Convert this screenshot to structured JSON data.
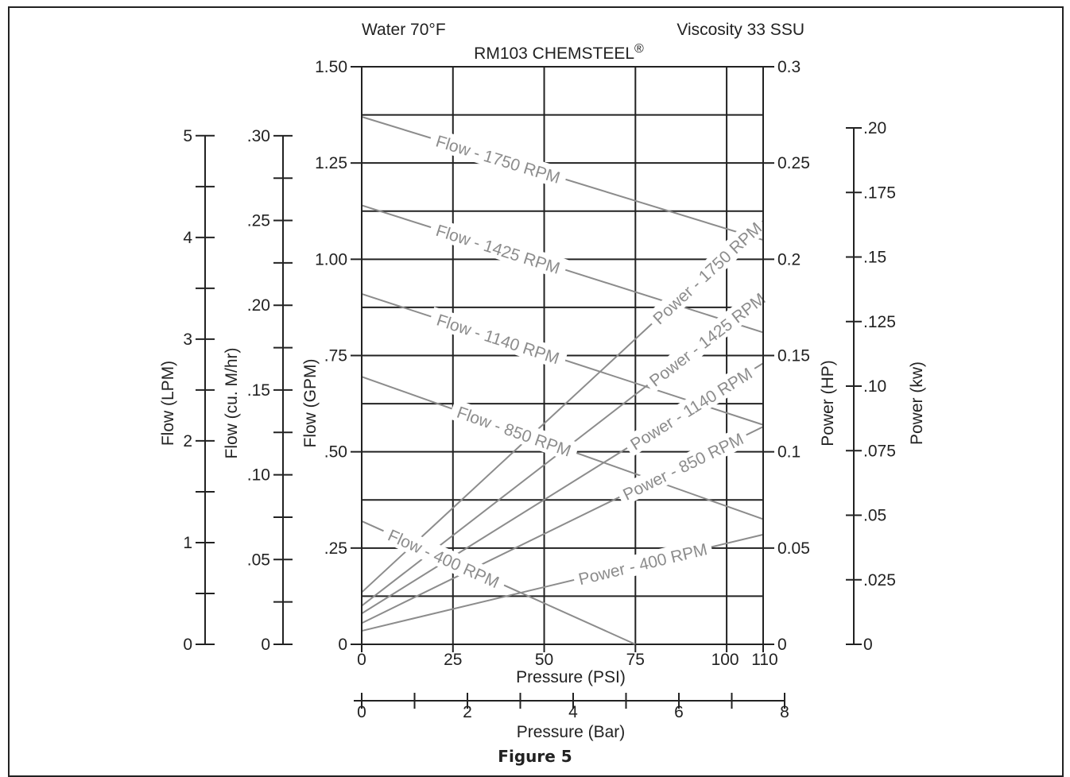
{
  "figure_caption": "Figure 5",
  "chart_data": {
    "type": "line",
    "title": "RM103 CHEMSTEEL",
    "title_mark": "®",
    "subtitle_left": "Water 70°F",
    "subtitle_right": "Viscosity 33 SSU",
    "x_axis": {
      "label": "Pressure (PSI)",
      "range": [
        0,
        110
      ],
      "ticks": [
        0,
        25,
        50,
        75,
        100,
        110
      ],
      "tick_labels": [
        "0",
        "25",
        "50",
        "75",
        "100",
        "110"
      ]
    },
    "x_axis_secondary": {
      "label": "Pressure (Bar)",
      "range": [
        0,
        8
      ],
      "major_ticks": [
        0,
        2,
        4,
        6,
        8
      ],
      "tick_labels": [
        "0",
        "2",
        "4",
        "6",
        "8"
      ],
      "minor_ticks": [
        1,
        3,
        5,
        7
      ]
    },
    "y_axis_left": {
      "label": "Flow (GPM)",
      "range": [
        0,
        1.5
      ],
      "ticks": [
        0,
        0.25,
        0.5,
        0.75,
        1.0,
        1.25,
        1.5
      ],
      "tick_labels": [
        "0",
        ".25",
        ".50",
        ".75",
        "1.00",
        "1.25",
        "1.50"
      ]
    },
    "y_axis_lpm": {
      "label": "Flow (LPM)",
      "range": [
        0,
        5.678
      ],
      "major_ticks": [
        0,
        1,
        2,
        3,
        4,
        5
      ],
      "tick_labels": [
        "0",
        "1",
        "2",
        "3",
        "4",
        "5"
      ],
      "minor_ticks": [
        0.5,
        1.5,
        2.5,
        3.5,
        4.5
      ]
    },
    "y_axis_m3hr": {
      "label": "Flow (cu. M/hr)",
      "range": [
        0,
        0.3407
      ],
      "major_ticks": [
        0,
        0.05,
        0.1,
        0.15,
        0.2,
        0.25,
        0.3
      ],
      "tick_labels": [
        "0",
        ".05",
        ".10",
        ".15",
        ".20",
        ".25",
        ".30"
      ],
      "minor_ticks": [
        0.025,
        0.075,
        0.125,
        0.175,
        0.225,
        0.275
      ]
    },
    "y_axis_right": {
      "label": "Power (HP)",
      "range": [
        0,
        0.3
      ],
      "ticks": [
        0,
        0.05,
        0.1,
        0.15,
        0.2,
        0.25,
        0.3
      ],
      "tick_labels": [
        "0",
        "0.05",
        "0.1",
        "0.15",
        "0.2",
        "0.25",
        "0.3"
      ]
    },
    "y_axis_kw": {
      "label": "Power (kw)",
      "range": [
        0,
        0.2237
      ],
      "ticks": [
        0,
        0.025,
        0.05,
        0.075,
        0.1,
        0.125,
        0.15,
        0.175,
        0.2
      ],
      "tick_labels": [
        "0",
        ".025",
        ".05",
        ".075",
        ".10",
        ".125",
        ".15",
        ".175",
        ".20"
      ]
    },
    "grid": true,
    "grid_x": [
      0,
      25,
      50,
      75,
      100,
      110
    ],
    "grid_y": [
      0,
      0.125,
      0.25,
      0.375,
      0.5,
      0.625,
      0.75,
      0.875,
      1.0,
      1.125,
      1.25,
      1.375,
      1.5
    ],
    "series": [
      {
        "name": "Flow - 1750 RPM",
        "axis": "flow",
        "points": [
          [
            0,
            1.37
          ],
          [
            110,
            1.05
          ]
        ]
      },
      {
        "name": "Flow - 1425 RPM",
        "axis": "flow",
        "points": [
          [
            0,
            1.14
          ],
          [
            110,
            0.81
          ]
        ]
      },
      {
        "name": "Flow - 1140 RPM",
        "axis": "flow",
        "points": [
          [
            0,
            0.91
          ],
          [
            110,
            0.57
          ]
        ]
      },
      {
        "name": "Flow - 850 RPM",
        "axis": "flow",
        "points": [
          [
            0,
            0.695
          ],
          [
            110,
            0.325
          ]
        ]
      },
      {
        "name": "Flow - 400 RPM",
        "axis": "flow",
        "points": [
          [
            0,
            0.32
          ],
          [
            75,
            0.0
          ]
        ]
      },
      {
        "name": "Power - 1750 RPM",
        "axis": "power",
        "points": [
          [
            0,
            0.027
          ],
          [
            110,
            0.22
          ]
        ]
      },
      {
        "name": "Power - 1425 RPM",
        "axis": "power",
        "points": [
          [
            0,
            0.02
          ],
          [
            110,
            0.181
          ]
        ]
      },
      {
        "name": "Power - 1140 RPM",
        "axis": "power",
        "points": [
          [
            0,
            0.016
          ],
          [
            110,
            0.146
          ]
        ]
      },
      {
        "name": "Power - 850 RPM",
        "axis": "power",
        "points": [
          [
            0,
            0.011
          ],
          [
            110,
            0.113
          ]
        ]
      },
      {
        "name": "Power - 400 RPM",
        "axis": "power",
        "points": [
          [
            0,
            0.007
          ],
          [
            110,
            0.057
          ]
        ]
      }
    ]
  }
}
